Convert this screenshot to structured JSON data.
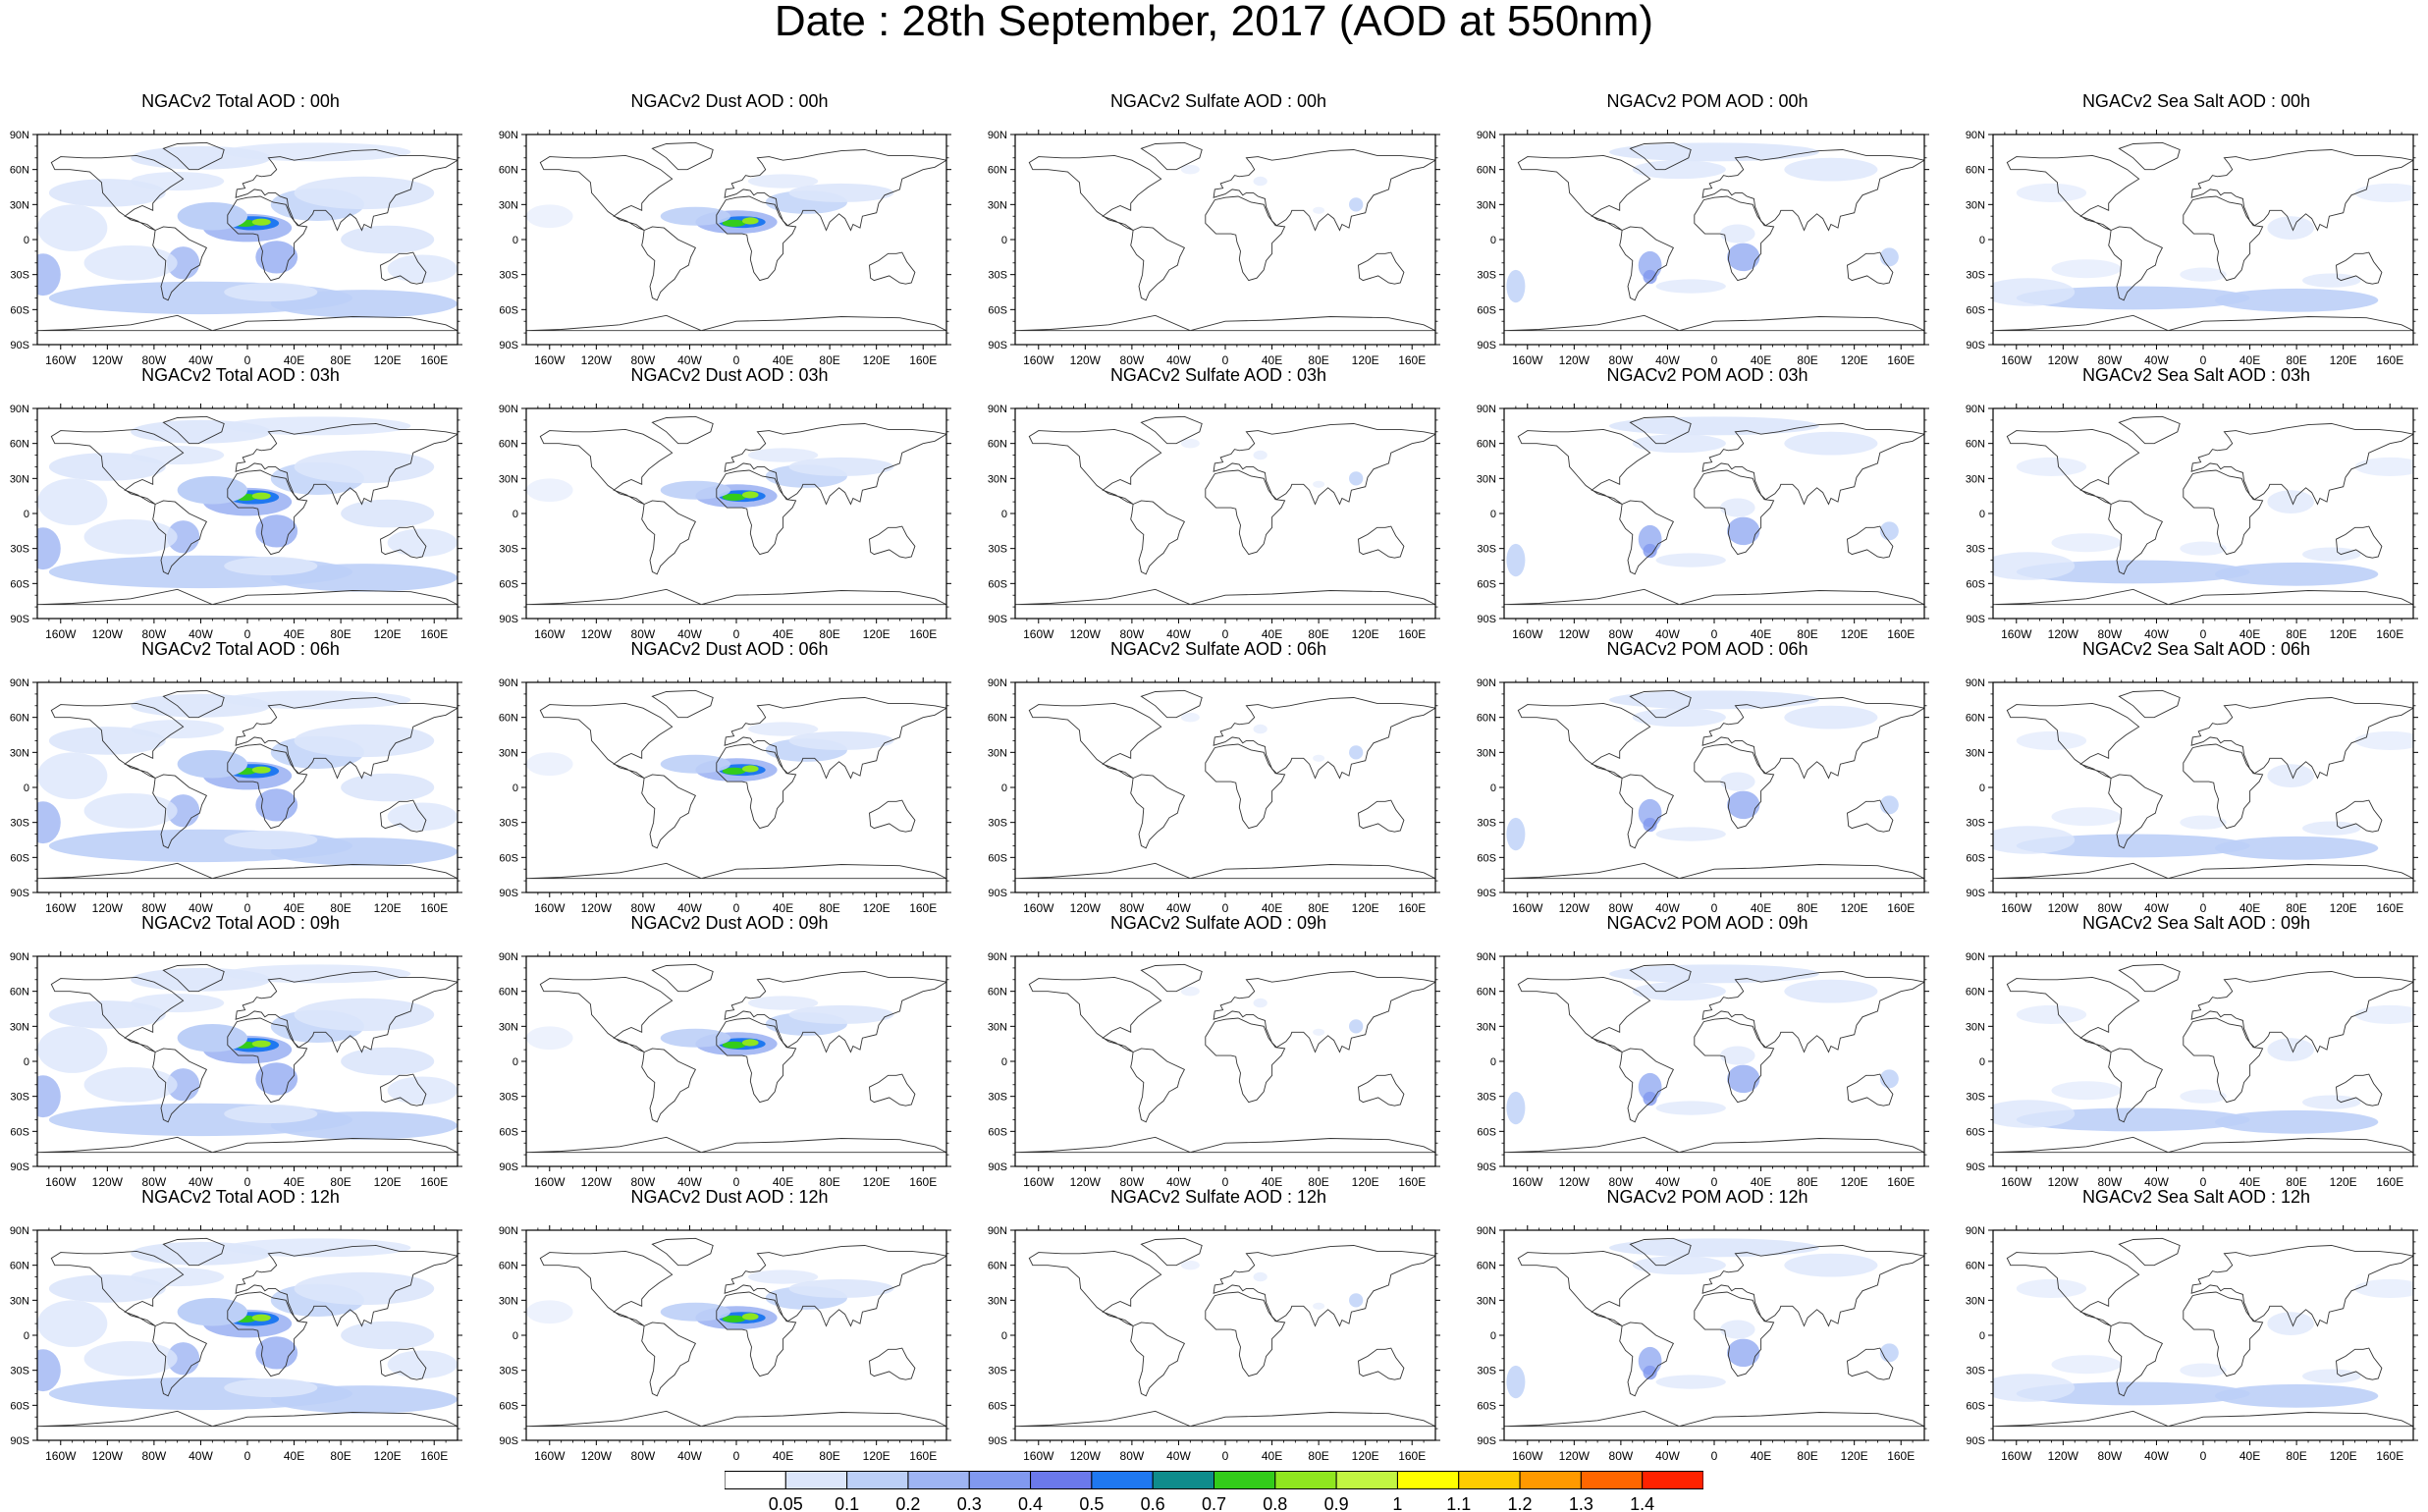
{
  "title": "Date : 28th September, 2017 (AOD at 550nm)",
  "panels": [
    [
      "NGACv2 Total AOD : 00h",
      "NGACv2 Dust AOD : 00h",
      "NGACv2 Sulfate AOD : 00h",
      "NGACv2 POM AOD : 00h",
      "NGACv2 Sea Salt AOD : 00h"
    ],
    [
      "NGACv2 Total AOD : 03h",
      "NGACv2 Dust AOD : 03h",
      "NGACv2 Sulfate AOD : 03h",
      "NGACv2 POM AOD : 03h",
      "NGACv2 Sea Salt AOD : 03h"
    ],
    [
      "NGACv2 Total AOD : 06h",
      "NGACv2 Dust AOD : 06h",
      "NGACv2 Sulfate AOD : 06h",
      "NGACv2 POM AOD : 06h",
      "NGACv2 Sea Salt AOD : 06h"
    ],
    [
      "NGACv2 Total AOD : 09h",
      "NGACv2 Dust AOD : 09h",
      "NGACv2 Sulfate AOD : 09h",
      "NGACv2 POM AOD : 09h",
      "NGACv2 Sea Salt  AOD : 09h"
    ],
    [
      "NGACv2 Total AOD  : 12h",
      "NGACv2 Dust AOD : 12h",
      "NGACv2 Sulfate AOD : 12h",
      "NGACv2 POM  AOD : 12h",
      "NGACv2 Sea Salt AOD : 12h"
    ]
  ],
  "lat_ticks": [
    "90N",
    "60N",
    "30N",
    "0",
    "30S",
    "60S",
    "90S"
  ],
  "lon_ticks": [
    "160W",
    "120W",
    "80W",
    "40W",
    "0",
    "40E",
    "80E",
    "120E",
    "160E"
  ],
  "colorbar": {
    "levels": [
      "0.05",
      "0.1",
      "0.2",
      "0.3",
      "0.4",
      "0.5",
      "0.6",
      "0.7",
      "0.8",
      "0.9",
      "1",
      "1.1",
      "1.2",
      "1.3",
      "1.4"
    ],
    "colors": [
      "#ffffff",
      "#dce6fb",
      "#bccff7",
      "#9eb4f3",
      "#8199ef",
      "#6b79eb",
      "#1f78f0",
      "#0f8c8c",
      "#33cc1a",
      "#8fe61f",
      "#c2f542",
      "#ffff00",
      "#ffcc00",
      "#ff9900",
      "#ff6600",
      "#ff2200"
    ]
  },
  "species": [
    "Total",
    "Dust",
    "Sulfate",
    "POM",
    "Sea Salt"
  ]
}
